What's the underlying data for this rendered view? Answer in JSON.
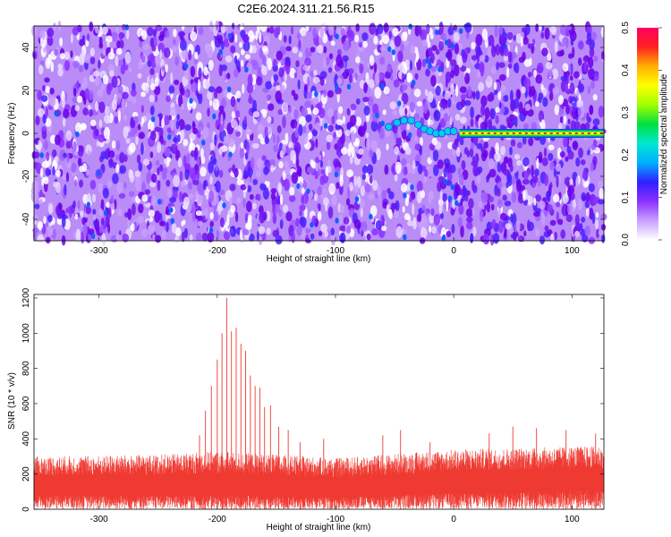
{
  "title": "C2E6.2024.311.21.56.R15",
  "colors": {
    "snr_line": "#ef3a32",
    "track_core": "#ff2222",
    "track_outer": "#00e040",
    "background_hues": [
      "#6a00e8",
      "#8a30ff",
      "#c8a0ff"
    ]
  },
  "chart_data": [
    {
      "type": "heatmap",
      "xlabel": "Height of straight line (km)",
      "ylabel": "Frequency (Hz)",
      "xlim": [
        -355,
        127
      ],
      "ylim": [
        -50,
        50
      ],
      "xticks": [
        -300,
        -200,
        -100,
        0,
        100
      ],
      "xtick_labels": [
        "-300",
        "-200",
        "-100",
        "0",
        "100"
      ],
      "yticks": [
        -40,
        -20,
        0,
        20,
        40
      ],
      "ytick_labels": [
        "-40",
        "-20",
        "0",
        "20",
        "40"
      ],
      "colorbar": {
        "label": "Normalized spectral amplitude",
        "range": [
          0.0,
          0.5
        ],
        "ticks": [
          0.0,
          0.1,
          0.2,
          0.3,
          0.4,
          0.5
        ],
        "tick_labels": [
          "0.0",
          "0.1",
          "0.2",
          "0.3",
          "0.4",
          "0.5"
        ],
        "colormap": [
          "#ffffff",
          "#c8a0ff",
          "#8a30ff",
          "#3020ff",
          "#00b0ff",
          "#00e8d0",
          "#00e040",
          "#a0ff00",
          "#ffff00",
          "#ffb000",
          "#ff2222",
          "#ff0060"
        ]
      },
      "signal_track": [
        {
          "x": -55,
          "y": 3,
          "amp": 0.12
        },
        {
          "x": -48,
          "y": 5,
          "amp": 0.14
        },
        {
          "x": -42,
          "y": 6,
          "amp": 0.15
        },
        {
          "x": -36,
          "y": 6,
          "amp": 0.16
        },
        {
          "x": -30,
          "y": 4,
          "amp": 0.15
        },
        {
          "x": -25,
          "y": 2,
          "amp": 0.14
        },
        {
          "x": -20,
          "y": 1,
          "amp": 0.15
        },
        {
          "x": -15,
          "y": 0,
          "amp": 0.16
        },
        {
          "x": -10,
          "y": 0,
          "amp": 0.17
        },
        {
          "x": -5,
          "y": 1,
          "amp": 0.18
        },
        {
          "x": 0,
          "y": 1,
          "amp": 0.2
        },
        {
          "x": 5,
          "y": 0,
          "amp": 0.3
        },
        {
          "x": 127,
          "y": 0,
          "amp": 0.45
        }
      ],
      "legend": "none"
    },
    {
      "type": "line",
      "xlabel": "Height of straight line (km)",
      "ylabel": "SNR (10 * v/v)",
      "xlim": [
        -355,
        127
      ],
      "ylim": [
        0,
        1220
      ],
      "xticks": [
        -300,
        -200,
        -100,
        0,
        100
      ],
      "xtick_labels": [
        "-300",
        "-200",
        "-100",
        "0",
        "100"
      ],
      "yticks": [
        0,
        200,
        400,
        600,
        800,
        1000,
        1200
      ],
      "ytick_labels": [
        "0",
        "200",
        "400",
        "600",
        "800",
        "1000",
        "1200"
      ],
      "baseline_band": [
        {
          "x": -355,
          "typ_low": 80,
          "typ_high": 300
        },
        {
          "x": -250,
          "typ_low": 80,
          "typ_high": 310
        },
        {
          "x": -200,
          "typ_low": 80,
          "typ_high": 330
        },
        {
          "x": -100,
          "typ_low": 70,
          "typ_high": 290
        },
        {
          "x": 0,
          "typ_low": 90,
          "typ_high": 340
        },
        {
          "x": 127,
          "typ_low": 110,
          "typ_high": 360
        }
      ],
      "peaks": [
        {
          "x": -215,
          "y": 420
        },
        {
          "x": -210,
          "y": 560
        },
        {
          "x": -205,
          "y": 700
        },
        {
          "x": -200,
          "y": 850
        },
        {
          "x": -196,
          "y": 1000
        },
        {
          "x": -192,
          "y": 1200
        },
        {
          "x": -188,
          "y": 1010
        },
        {
          "x": -184,
          "y": 1030
        },
        {
          "x": -180,
          "y": 940
        },
        {
          "x": -176,
          "y": 900
        },
        {
          "x": -172,
          "y": 760
        },
        {
          "x": -168,
          "y": 700
        },
        {
          "x": -164,
          "y": 690
        },
        {
          "x": -160,
          "y": 580
        },
        {
          "x": -155,
          "y": 590
        },
        {
          "x": -148,
          "y": 470
        },
        {
          "x": -140,
          "y": 450
        },
        {
          "x": -130,
          "y": 380
        },
        {
          "x": -110,
          "y": 400
        },
        {
          "x": -60,
          "y": 420
        },
        {
          "x": -45,
          "y": 450
        },
        {
          "x": -20,
          "y": 380
        },
        {
          "x": 30,
          "y": 430
        },
        {
          "x": 50,
          "y": 470
        },
        {
          "x": 70,
          "y": 460
        },
        {
          "x": 95,
          "y": 450
        },
        {
          "x": 120,
          "y": 430
        }
      ],
      "legend": "none"
    }
  ]
}
